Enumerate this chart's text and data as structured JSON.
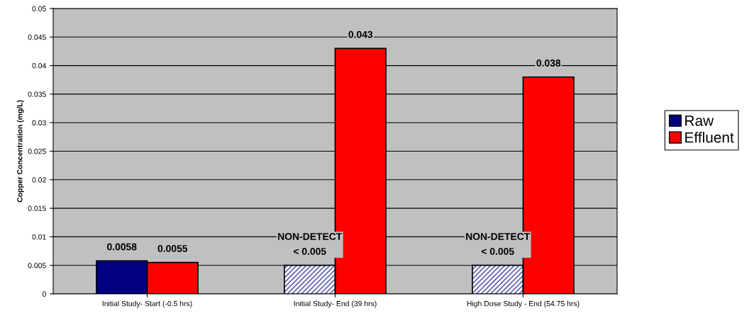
{
  "chart_data": {
    "type": "bar",
    "ylabel": "Copper Concentration (mg/L)",
    "categories": [
      "Initial Study- Start (-0.5 hrs)",
      "Initial Study- End (39 hrs)",
      "High Dose Study - End (54.75 hrs)"
    ],
    "series": [
      {
        "name": "Raw",
        "color": "#000080",
        "colors": [
          "#000080",
          "#3a3aa0",
          "#3a3aa0"
        ],
        "values": [
          0.0058,
          0.005,
          0.005
        ],
        "value_labels": [
          "0.0058",
          "NON-DETECT\n< 0.005",
          "NON-DETECT\n< 0.005"
        ]
      },
      {
        "name": "Effluent",
        "color": "#ff0000",
        "values": [
          0.0055,
          0.043,
          0.038
        ],
        "value_labels": [
          "0.0055",
          "0.043",
          "0.038"
        ]
      }
    ],
    "ylim": [
      0,
      0.05
    ],
    "yticks": [
      {
        "value": 0,
        "label": "0"
      },
      {
        "value": 0.005,
        "label": "0.005"
      },
      {
        "value": 0.01,
        "label": "0.01"
      },
      {
        "value": 0.015,
        "label": "0.015"
      },
      {
        "value": 0.02,
        "label": "0.02"
      },
      {
        "value": 0.025,
        "label": "0.025"
      },
      {
        "value": 0.03,
        "label": "0.03"
      },
      {
        "value": 0.035,
        "label": "0.035"
      },
      {
        "value": 0.04,
        "label": "0.04"
      },
      {
        "value": 0.045,
        "label": "0.045"
      },
      {
        "value": 0.05,
        "label": "0.05"
      }
    ],
    "grid": "y",
    "legend": "right"
  }
}
